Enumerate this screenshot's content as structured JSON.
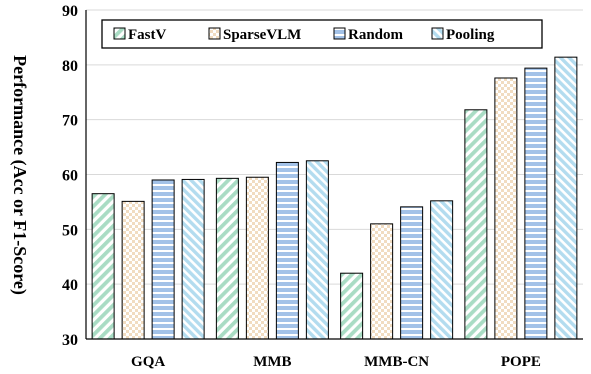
{
  "chart_data": {
    "type": "bar",
    "title": "",
    "xlabel": "",
    "ylabel": "Performance (Acc or F1-Score)",
    "categories": [
      "GQA",
      "MMB",
      "MMB-CN",
      "POPE"
    ],
    "series": [
      {
        "name": "FastV",
        "values": [
          56.5,
          59.3,
          42.0,
          71.8
        ]
      },
      {
        "name": "SparseVLM",
        "values": [
          55.1,
          59.5,
          51.0,
          77.6
        ]
      },
      {
        "name": "Random",
        "values": [
          59.0,
          62.2,
          54.1,
          79.4
        ]
      },
      {
        "name": "Pooling",
        "values": [
          59.1,
          62.5,
          55.2,
          81.4
        ]
      }
    ],
    "ylim": [
      30,
      90
    ],
    "yticks": [
      30,
      40,
      50,
      60,
      70,
      80,
      90
    ],
    "grid": true,
    "legend_position": "top",
    "colors": {
      "FastV": "#a9dcc4",
      "SparseVLM": "#f1dcc1",
      "Random": "#a3c2e8",
      "Pooling": "#b3dcef"
    }
  }
}
